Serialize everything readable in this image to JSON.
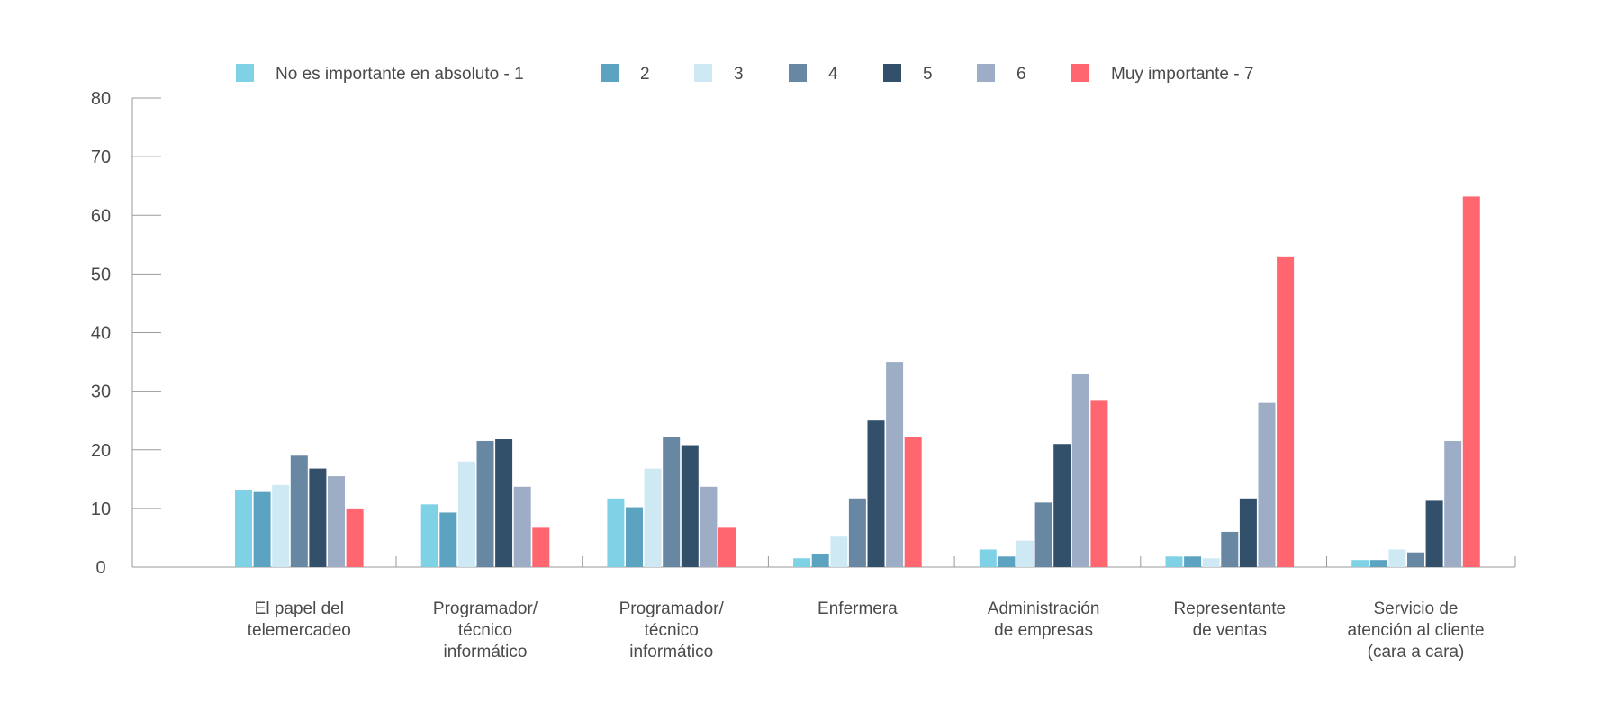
{
  "chart_data": {
    "type": "bar",
    "categories": [
      [
        "El papel del",
        "telemercadeo"
      ],
      [
        "Programador/",
        "técnico",
        "informático"
      ],
      [
        "Programador/",
        "técnico",
        "informático"
      ],
      [
        "Enfermera"
      ],
      [
        "Administración",
        "de empresas"
      ],
      [
        "Representante",
        "de ventas"
      ],
      [
        "Servicio de",
        "atención al cliente",
        "(cara a cara)"
      ]
    ],
    "series": [
      {
        "name": "No es importante en absoluto - 1",
        "color": "#7fd1e6",
        "values": [
          13.2,
          10.7,
          11.7,
          1.5,
          3,
          1.8,
          1.2
        ]
      },
      {
        "name": "2",
        "color": "#5ba3c0",
        "values": [
          12.8,
          9.3,
          10.2,
          2.3,
          1.8,
          1.8,
          1.2
        ]
      },
      {
        "name": "3",
        "color": "#cfe9f4",
        "values": [
          14,
          18,
          16.8,
          5.2,
          4.5,
          1.5,
          3
        ]
      },
      {
        "name": "4",
        "color": "#6787a3",
        "values": [
          19,
          21.5,
          22.2,
          11.7,
          11,
          6,
          2.5
        ]
      },
      {
        "name": "5",
        "color": "#33506b",
        "values": [
          16.8,
          21.8,
          20.8,
          25,
          21,
          11.7,
          11.3
        ]
      },
      {
        "name": "6",
        "color": "#9eadc6",
        "values": [
          15.5,
          13.7,
          13.7,
          35,
          33,
          28,
          21.5
        ]
      },
      {
        "name": "Muy importante - 7",
        "color": "#ff6670",
        "values": [
          10,
          6.7,
          6.7,
          22.2,
          28.5,
          53,
          63.2
        ]
      }
    ],
    "ylim": [
      0,
      80
    ],
    "yticks": [
      "0",
      "10",
      "20",
      "30",
      "40",
      "50",
      "60",
      "70",
      "80"
    ],
    "legend_position": "top",
    "grid": false
  }
}
